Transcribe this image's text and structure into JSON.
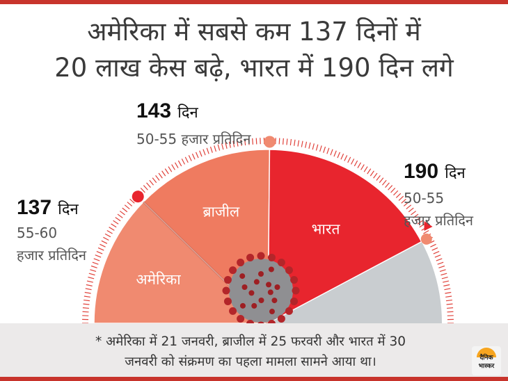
{
  "title": {
    "line1": "अमेरिका में सबसे कम 137 दिनों में",
    "line2": "20 लाख केस बढ़े, भारत में 190 दिन लगे"
  },
  "labels": {
    "usa": {
      "days": "137",
      "unit": "दिन",
      "rate_line1": "55-60",
      "rate_line2": "हजार प्रतिदिन"
    },
    "brazil": {
      "days": "143",
      "unit": "दिन",
      "rate": "50-55 हजार प्रतिदिन"
    },
    "india": {
      "days": "190",
      "unit": "दिन",
      "rate_line1": "50-55",
      "rate_line2": "हजार प्रतिदिन"
    }
  },
  "chart_data": {
    "type": "pie",
    "title": "अमेरिका में सबसे कम 137 दिनों में 20 लाख केस बढ़े, भारत में 190 दिन लगे",
    "categories": [
      "अमेरिका",
      "ब्राजील",
      "भारत"
    ],
    "values": [
      137,
      143,
      190
    ],
    "units": "दिन",
    "annotations": [
      "55-60 हजार प्रतिदिन",
      "50-55 हजार प्रतिदिन",
      "50-55 हजार प्रतिदिन"
    ],
    "colors": [
      "#f08a70",
      "#ef7b60",
      "#e8252e"
    ],
    "remainder_color": "#c9cdd0",
    "gauge_tick_color": "#e0413a",
    "marker_colors": [
      "#e8252e",
      "#f08a70",
      "#f08a70"
    ]
  },
  "footnote": {
    "line1": "* अमेरिका में 21 जनवरी, ब्राजील में 25 फरवरी और भारत में 30",
    "line2": "जनवरी को संक्रमण का पहला मामला सामने आया था।"
  },
  "logo": {
    "line1": "दैनिक",
    "line2": "भास्कर"
  }
}
